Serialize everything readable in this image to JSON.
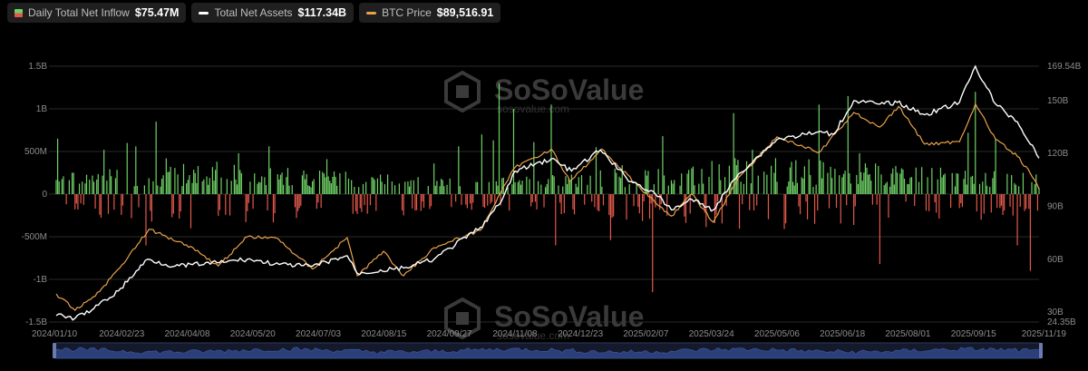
{
  "legend": [
    {
      "label": "Daily Total Net Inflow",
      "value": "$75.47M",
      "swatch": "bar"
    },
    {
      "label": "Total Net Assets",
      "value": "$117.34B",
      "swatch": "line",
      "color": "#ffffff"
    },
    {
      "label": "BTC Price",
      "value": "$89,516.91",
      "swatch": "line",
      "color": "#e8a24a"
    }
  ],
  "watermark": {
    "brand": "SoSoValue",
    "url": "sosovalue.com"
  },
  "colors": {
    "inflow": "#6fd166",
    "outflow": "#e3584b",
    "assets": "#ffffff",
    "price": "#e8a24a",
    "grid": "#2a2a2a"
  },
  "chart_data": {
    "type": "bar",
    "x_start": "2024-01-10",
    "x_end": "2025-11-19",
    "xticks": [
      "2024/01/10",
      "2024/02/23",
      "2024/04/08",
      "2024/05/20",
      "2024/07/03",
      "2024/08/15",
      "2024/09/27",
      "2024/11/08",
      "2024/12/23",
      "2025/02/07",
      "2025/03/24",
      "2025/05/06",
      "2025/06/18",
      "2025/08/01",
      "2025/09/15",
      "2025/11/19"
    ],
    "y_left": {
      "ticks": [
        "1.5B",
        "1B",
        "500M",
        "0",
        "-500M",
        "-1B",
        "-1.5B"
      ],
      "values": [
        1500,
        1000,
        500,
        0,
        -500,
        -1000,
        -1500
      ],
      "unit": "M USD"
    },
    "y_right": {
      "ticks": [
        "169.54B",
        "150B",
        "120B",
        "90B",
        "60B",
        "30B",
        "24.35B"
      ],
      "values": [
        169.54,
        150,
        120,
        90,
        60,
        30,
        24.35
      ],
      "range": [
        24.35,
        169.54
      ],
      "unit": "B USD"
    },
    "btc_price_axis_range": [
      35000,
      140000
    ],
    "series": [
      {
        "name": "Daily Total Net Inflow",
        "kind": "bar",
        "unit": "M USD",
        "dates": [
          "2024-01-11",
          "2024-01-25",
          "2024-02-12",
          "2024-02-28",
          "2024-03-05",
          "2024-03-12",
          "2024-03-19",
          "2024-03-26",
          "2024-04-12",
          "2024-04-30",
          "2024-05-15",
          "2024-06-05",
          "2024-06-24",
          "2024-07-15",
          "2024-08-02",
          "2024-08-26",
          "2024-09-06",
          "2024-09-27",
          "2024-10-14",
          "2024-10-30",
          "2024-11-07",
          "2024-11-11",
          "2024-11-21",
          "2024-12-05",
          "2024-12-17",
          "2024-12-20",
          "2025-01-17",
          "2025-01-27",
          "2025-02-04",
          "2025-02-25",
          "2025-03-04",
          "2025-03-21",
          "2025-04-02",
          "2025-04-22",
          "2025-05-05",
          "2025-05-20",
          "2025-06-20",
          "2025-07-10",
          "2025-07-18",
          "2025-08-01",
          "2025-08-15",
          "2025-09-12",
          "2025-10-01",
          "2025-10-06",
          "2025-10-10",
          "2025-10-20",
          "2025-11-04",
          "2025-11-13",
          "2025-11-19"
        ],
        "values": [
          650,
          -180,
          520,
          600,
          560,
          -600,
          850,
          420,
          -400,
          380,
          480,
          560,
          -280,
          410,
          -230,
          230,
          -250,
          360,
          560,
          700,
          630,
          1300,
          1000,
          610,
          1050,
          -600,
          550,
          -540,
          340,
          -1150,
          680,
          240,
          -220,
          950,
          520,
          250,
          1050,
          1150,
          480,
          -820,
          240,
          310,
          720,
          1200,
          -300,
          650,
          -600,
          -900,
          75
        ]
      },
      {
        "name": "Total Net Assets",
        "kind": "line",
        "unit": "B USD",
        "dates": [
          "2024-01-10",
          "2024-01-23",
          "2024-02-05",
          "2024-02-22",
          "2024-03-13",
          "2024-04-01",
          "2024-04-30",
          "2024-05-21",
          "2024-06-12",
          "2024-07-05",
          "2024-07-29",
          "2024-08-05",
          "2024-09-06",
          "2024-09-27",
          "2024-10-29",
          "2024-11-12",
          "2024-11-22",
          "2024-12-17",
          "2024-12-31",
          "2025-01-20",
          "2025-02-07",
          "2025-02-27",
          "2025-03-10",
          "2025-03-24",
          "2025-04-08",
          "2025-04-25",
          "2025-05-22",
          "2025-06-18",
          "2025-06-30",
          "2025-07-14",
          "2025-08-01",
          "2025-08-13",
          "2025-09-01",
          "2025-09-25",
          "2025-10-06",
          "2025-10-20",
          "2025-11-04",
          "2025-11-19"
        ],
        "values": [
          28,
          26.5,
          32,
          42,
          60,
          56,
          58,
          60,
          57,
          56,
          62,
          52,
          55,
          60,
          78,
          92,
          110,
          117,
          110,
          122,
          106,
          97,
          88,
          94,
          88,
          108,
          128,
          132,
          131,
          150,
          148,
          149,
          142,
          149,
          169.5,
          148,
          138,
          117.34
        ]
      },
      {
        "name": "BTC Price",
        "kind": "line",
        "unit": "USD",
        "dates": [
          "2024-01-10",
          "2024-01-23",
          "2024-02-09",
          "2024-02-29",
          "2024-03-14",
          "2024-04-12",
          "2024-05-01",
          "2024-05-21",
          "2024-06-10",
          "2024-07-05",
          "2024-07-29",
          "2024-08-05",
          "2024-08-23",
          "2024-09-06",
          "2024-09-27",
          "2024-10-29",
          "2024-11-12",
          "2024-11-22",
          "2024-12-17",
          "2024-12-30",
          "2025-01-21",
          "2025-02-03",
          "2025-02-27",
          "2025-03-10",
          "2025-03-24",
          "2025-04-08",
          "2025-04-25",
          "2025-05-22",
          "2025-06-20",
          "2025-07-14",
          "2025-08-01",
          "2025-08-14",
          "2025-09-01",
          "2025-09-25",
          "2025-10-06",
          "2025-10-20",
          "2025-11-04",
          "2025-11-13",
          "2025-11-19"
        ],
        "values": [
          46500,
          39800,
          47500,
          62000,
          73000,
          66000,
          58000,
          70000,
          69500,
          56800,
          69600,
          54000,
          64000,
          54000,
          65500,
          72600,
          88000,
          98500,
          106000,
          92600,
          106000,
          98000,
          84000,
          78500,
          87500,
          76000,
          94000,
          111000,
          104500,
          121000,
          115000,
          123500,
          108000,
          109000,
          124500,
          110000,
          103000,
          96000,
          89516.91
        ]
      }
    ]
  }
}
